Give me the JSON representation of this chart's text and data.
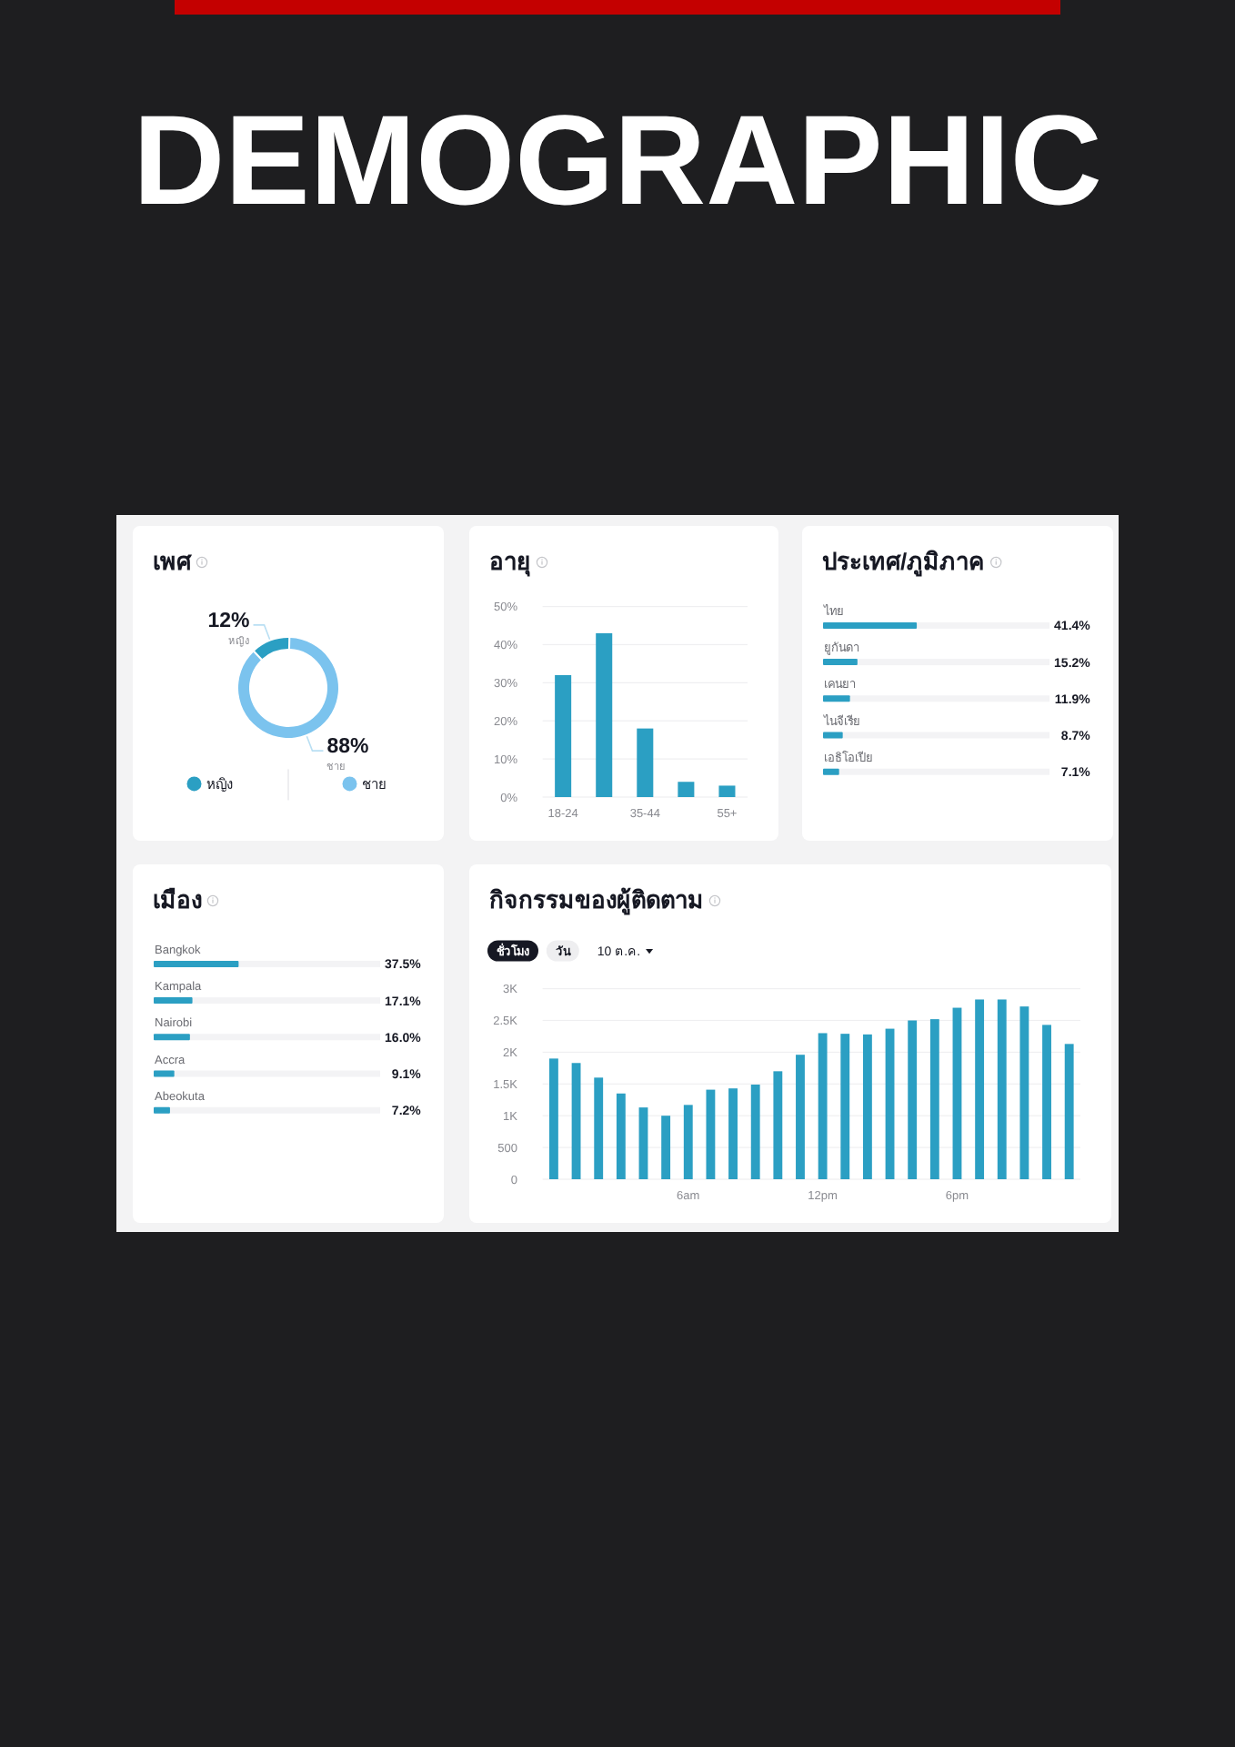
{
  "chart_data": [
    {
      "type": "other",
      "title": "DEMOGRAPHIC"
    },
    {
      "type": "donut",
      "title": "เพศ",
      "categories": [
        "หญิง",
        "ชาย"
      ],
      "values": [
        12,
        88
      ],
      "colors": [
        "#2b9fc3",
        "#7bc3ee"
      ],
      "value_labels": [
        "12%",
        "88%"
      ],
      "legend": "bottom"
    },
    {
      "type": "bar",
      "title": "อายุ",
      "categories": [
        "18-24",
        null,
        "35-44",
        null,
        "55+"
      ],
      "values": [
        32,
        43,
        18,
        4,
        3
      ],
      "color": "#2b9fc3",
      "ylim": [
        0,
        50
      ],
      "yticks": [
        {
          "value": 0,
          "label": "0%"
        },
        {
          "value": 10,
          "label": "10%"
        },
        {
          "value": 20,
          "label": "20%"
        },
        {
          "value": 30,
          "label": "30%"
        },
        {
          "value": 40,
          "label": "40%"
        },
        {
          "value": 50,
          "label": "50%"
        }
      ],
      "grid": "y"
    },
    {
      "type": "bar",
      "orientation": "horizontal",
      "title": "ประเทศ/ภูมิภาค",
      "categories": [
        "ไทย",
        "ยูกันดา",
        "เคนยา",
        "ไนจีเรีย",
        "เอธิโอเปีย"
      ],
      "values": [
        41.4,
        15.2,
        11.9,
        8.7,
        7.1
      ],
      "value_labels": [
        "41.4%",
        "15.2%",
        "11.9%",
        "8.7%",
        "7.1%"
      ],
      "color": "#2b9fc3",
      "xlim": [
        0,
        100
      ],
      "tick_labels": "y"
    },
    {
      "type": "bar",
      "orientation": "horizontal",
      "title": "เมือง",
      "categories": [
        "Bangkok",
        "Kampala",
        "Nairobi",
        "Accra",
        "Abeokuta"
      ],
      "values": [
        37.5,
        17.1,
        16.0,
        9.1,
        7.2
      ],
      "value_labels": [
        "37.5%",
        "17.1%",
        "16.0%",
        "9.1%",
        "7.2%"
      ],
      "color": "#2b9fc3",
      "xlim": [
        0,
        100
      ],
      "tick_labels": "y"
    },
    {
      "type": "bar",
      "title": "กิจกรรมของผู้ติดตาม",
      "annotations": [
        "ชั่วโมง",
        "วัน",
        "10 ต.ค."
      ],
      "categories": [
        null,
        null,
        null,
        null,
        null,
        null,
        "6am",
        null,
        null,
        null,
        null,
        null,
        "12pm",
        null,
        null,
        null,
        null,
        null,
        "6pm",
        null,
        null,
        null,
        null,
        null
      ],
      "values": [
        1900,
        1830,
        1600,
        1350,
        1130,
        1000,
        1170,
        1410,
        1430,
        1490,
        1700,
        1960,
        2300,
        2290,
        2280,
        2370,
        2500,
        2520,
        2700,
        2830,
        2830,
        2720,
        2430,
        2130
      ],
      "color": "#2b9fc3",
      "ylim": [
        0,
        3000
      ],
      "yticks": [
        0,
        500,
        {
          "value": 1000,
          "label": "1K"
        },
        {
          "value": 1500,
          "label": "1.5K"
        },
        {
          "value": 2000,
          "label": "2K"
        },
        {
          "value": 2500,
          "label": "2.5K"
        },
        {
          "value": 3000,
          "label": "3K"
        }
      ],
      "grid": "y"
    }
  ]
}
